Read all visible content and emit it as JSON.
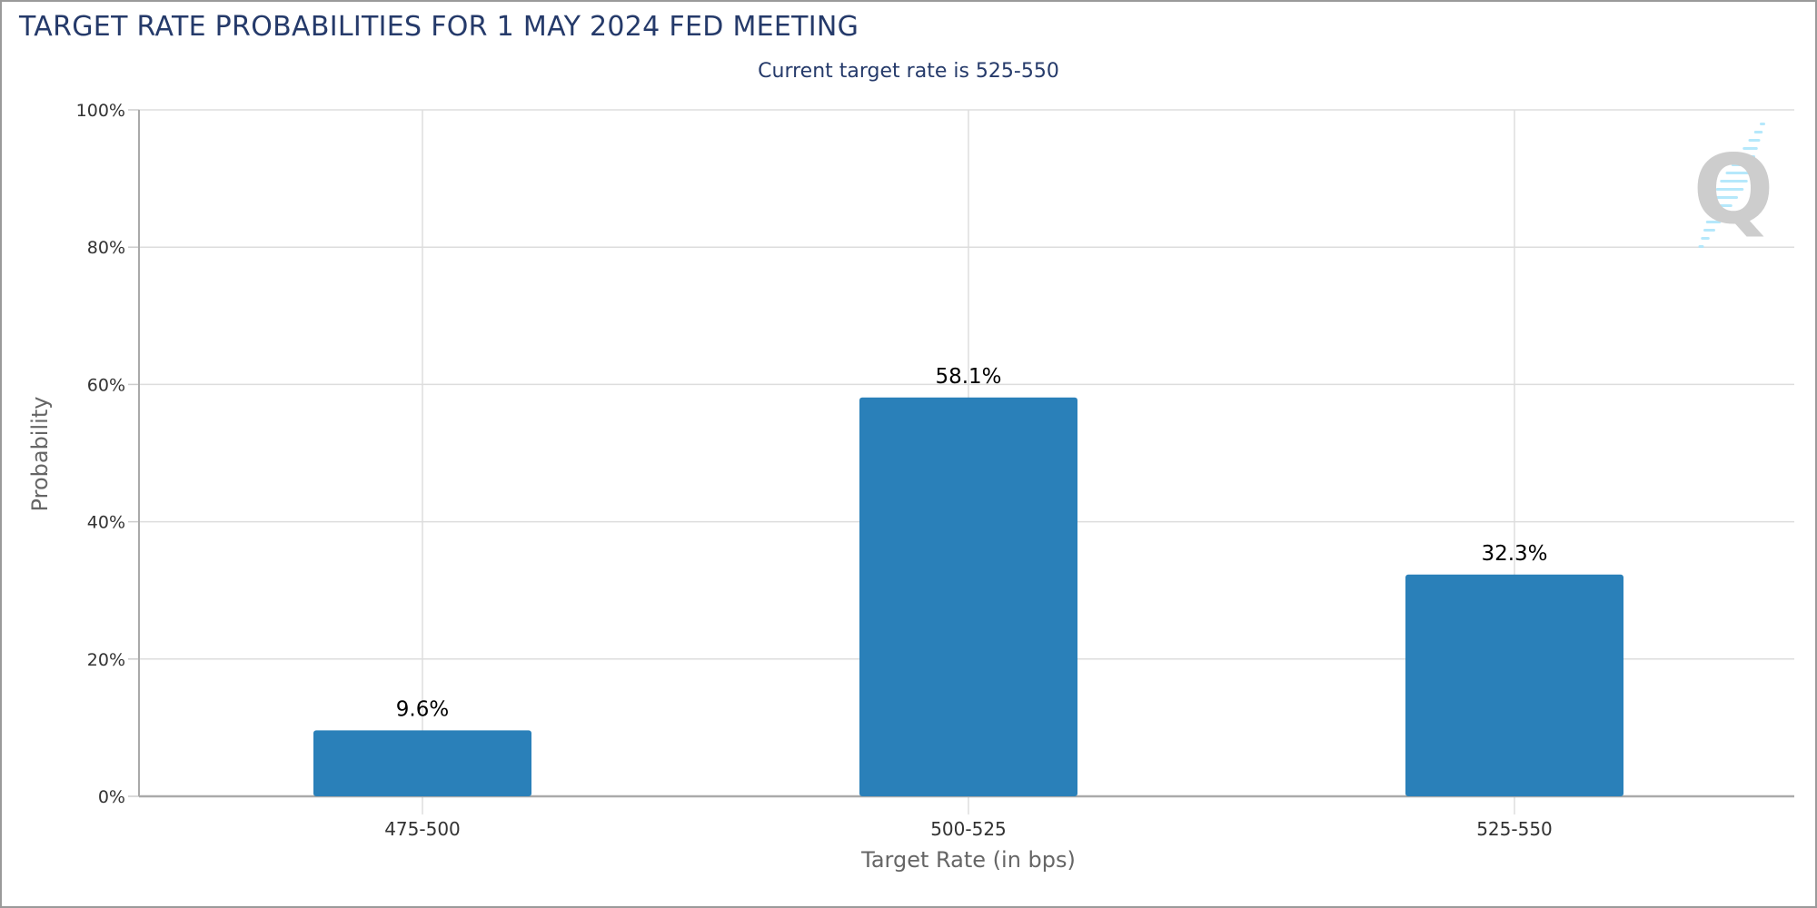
{
  "title": "TARGET RATE PROBABILITIES FOR 1 MAY 2024 FED MEETING",
  "subtitle": "Current target rate is 525-550",
  "colors": {
    "bar": "#2a80b9",
    "title": "#253a6a",
    "grid": "#dddddd"
  },
  "logo": {
    "icon": "q-logo-watermark",
    "text": "Q"
  },
  "chart_data": {
    "type": "bar",
    "categories": [
      "475-500",
      "500-525",
      "525-550"
    ],
    "values": [
      9.6,
      58.1,
      32.3
    ],
    "data_labels": [
      "9.6%",
      "58.1%",
      "32.3%"
    ],
    "xlabel": "Target Rate (in bps)",
    "ylabel": "Probability",
    "ylim": [
      0,
      100
    ],
    "yticks": [
      "0%",
      "20%",
      "40%",
      "60%",
      "80%",
      "100%"
    ],
    "grid": true,
    "legend": "none"
  }
}
